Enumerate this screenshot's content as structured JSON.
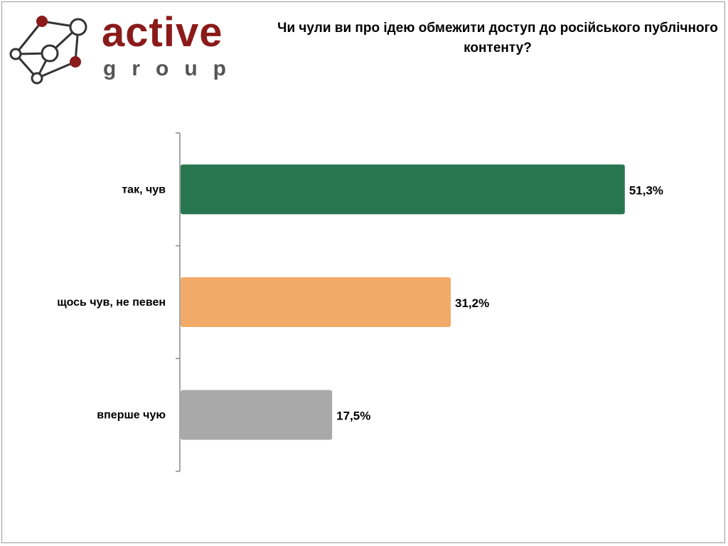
{
  "logo": {
    "name": "active",
    "sub": "group"
  },
  "chart_data": {
    "type": "bar",
    "orientation": "horizontal",
    "title": "Чи чули ви про ідею обмежити доступ до російського публічного контенту?",
    "categories": [
      "так, чув",
      "щось чув, не певен",
      "вперше чую"
    ],
    "values": [
      51.3,
      31.2,
      17.5
    ],
    "value_labels": [
      "51,3%",
      "31,2%",
      "17,5%"
    ],
    "colors": [
      "#277650",
      "#f2aa68",
      "#a9a9a9"
    ],
    "xlabel": "",
    "ylabel": "",
    "xlim": [
      0,
      60
    ],
    "grid": false,
    "legend": "none"
  }
}
